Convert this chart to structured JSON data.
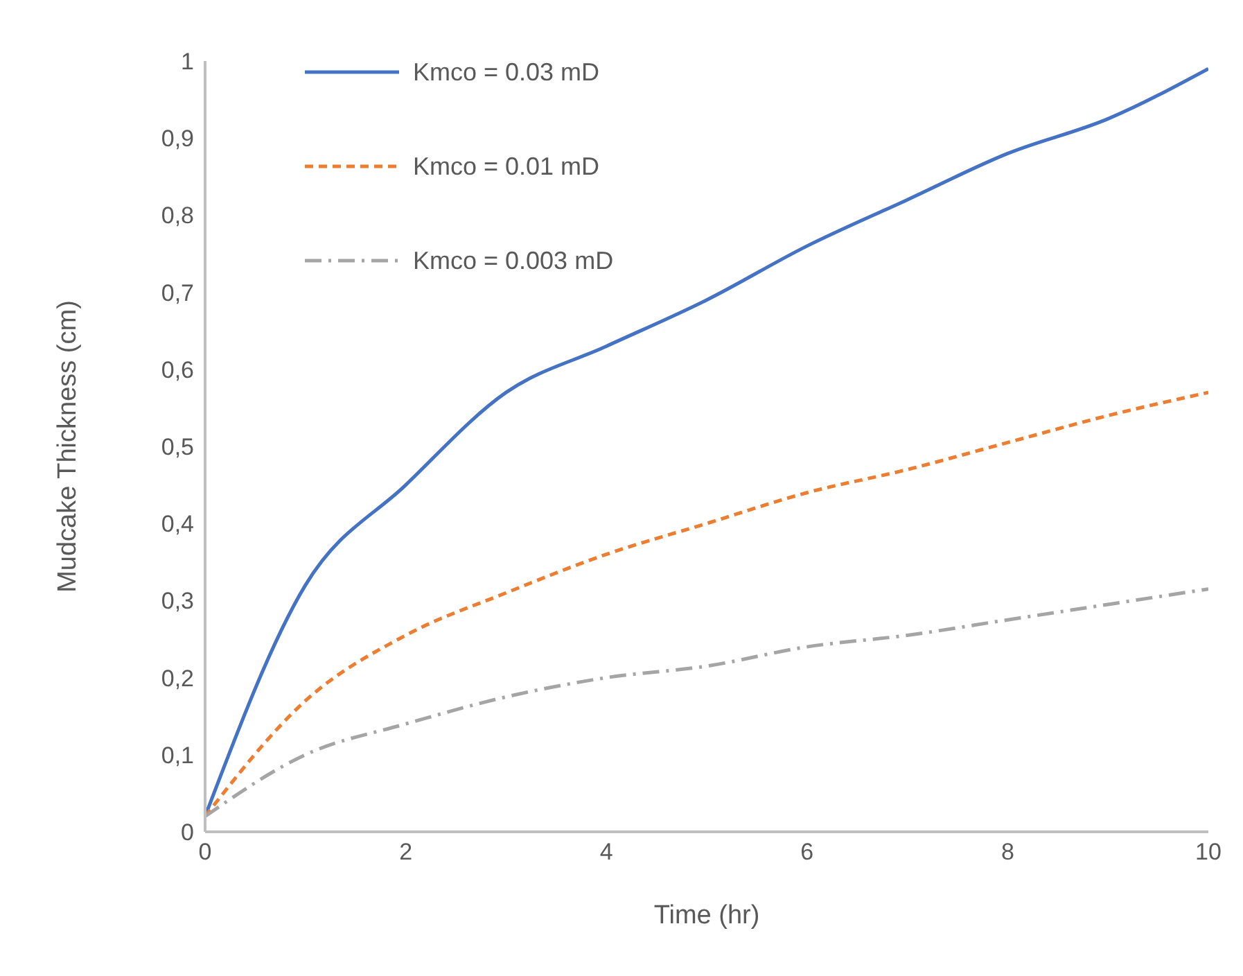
{
  "chart_data": {
    "type": "line",
    "xlabel": "Time (hr)",
    "ylabel": "Mudcake Thickness (cm)",
    "x": [
      0,
      1,
      2,
      3,
      4,
      5,
      6,
      7,
      8,
      9,
      10
    ],
    "series": [
      {
        "name": "Kmco = 0.03 mD",
        "color": "#4472c4",
        "line_style": "solid",
        "values": [
          0.02,
          0.32,
          0.45,
          0.57,
          0.63,
          0.69,
          0.76,
          0.82,
          0.88,
          0.925,
          0.99
        ]
      },
      {
        "name": "Kmco = 0.01 mD",
        "color": "#ed7d31",
        "line_style": "dashed",
        "values": [
          0.02,
          0.17,
          0.255,
          0.31,
          0.36,
          0.4,
          0.44,
          0.47,
          0.505,
          0.54,
          0.57
        ]
      },
      {
        "name": "Kmco = 0.003 mD",
        "color": "#a5a5a5",
        "line_style": "dashdot",
        "values": [
          0.02,
          0.1,
          0.14,
          0.175,
          0.2,
          0.215,
          0.24,
          0.255,
          0.275,
          0.295,
          0.315
        ]
      }
    ],
    "xlim": [
      0,
      10
    ],
    "xticks": [
      0,
      2,
      4,
      6,
      8,
      10
    ],
    "ylim": [
      0,
      1
    ],
    "yticks": [
      0,
      {
        "value": 0.1,
        "label": "0,1"
      },
      {
        "value": 0.2,
        "label": "0,2"
      },
      {
        "value": 0.3,
        "label": "0,3"
      },
      {
        "value": 0.4,
        "label": "0,4"
      },
      {
        "value": 0.5,
        "label": "0,5"
      },
      {
        "value": 0.6,
        "label": "0,6"
      },
      {
        "value": 0.7,
        "label": "0,7"
      },
      {
        "value": 0.8,
        "label": "0,8"
      },
      {
        "value": 0.9,
        "label": "0,9"
      },
      1
    ],
    "grid": false,
    "legend": "top left",
    "marker": "none"
  }
}
